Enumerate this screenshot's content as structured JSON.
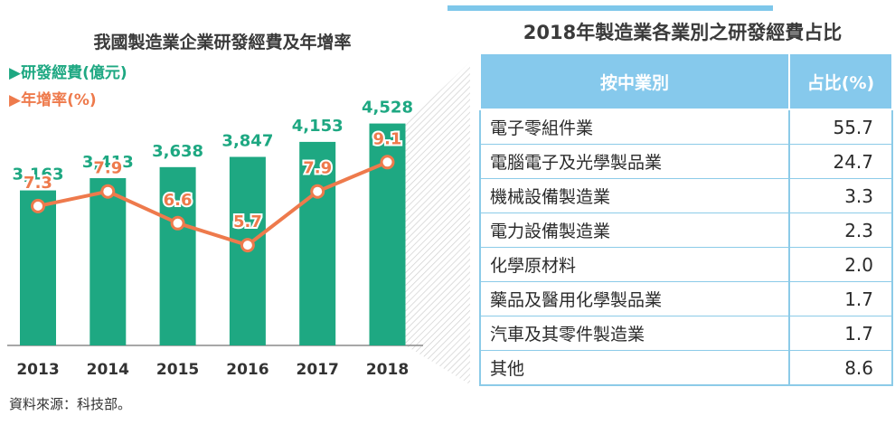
{
  "page": {
    "source": "資料來源：科技部。"
  },
  "chart_data": [
    {
      "type": "bar",
      "title": "我國製造業企業研發經費及年增率",
      "categories": [
        "2013",
        "2014",
        "2015",
        "2016",
        "2017",
        "2018"
      ],
      "series": [
        {
          "name": "研發經費(億元)",
          "type": "bar",
          "values": [
            3163,
            3413,
            3638,
            3847,
            4153,
            4528
          ],
          "labels": [
            "3,163",
            "3,413",
            "3,638",
            "3,847",
            "4,153",
            "4,528"
          ],
          "color": "#1ea882"
        },
        {
          "name": "年增率(%)",
          "type": "line",
          "values": [
            7.3,
            7.9,
            6.6,
            5.7,
            7.9,
            9.1
          ],
          "labels": [
            "7.3",
            "7.9",
            "6.6",
            "5.7",
            "7.9",
            "9.1"
          ],
          "color": "#ee7a4c"
        }
      ],
      "legend": [
        "▶研發經費(億元)",
        "▶年增率(%)"
      ],
      "legend_position": "top-left",
      "grid": false
    },
    {
      "type": "table",
      "title": "2018年製造業各業別之研發經費占比",
      "columns": [
        "按中業別",
        "占比(%)"
      ],
      "rows": [
        {
          "industry": "電子零組件業",
          "share": "55.7"
        },
        {
          "industry": "電腦電子及光學製品業",
          "share": "24.7"
        },
        {
          "industry": "機械設備製造業",
          "share": "3.3"
        },
        {
          "industry": "電力設備製造業",
          "share": "2.3"
        },
        {
          "industry": "化學原材料",
          "share": "2.0"
        },
        {
          "industry": "藥品及醫用化學製品業",
          "share": "1.7"
        },
        {
          "industry": "汽車及其零件製造業",
          "share": "1.7"
        },
        {
          "industry": "其他",
          "share": "8.6"
        }
      ]
    }
  ]
}
